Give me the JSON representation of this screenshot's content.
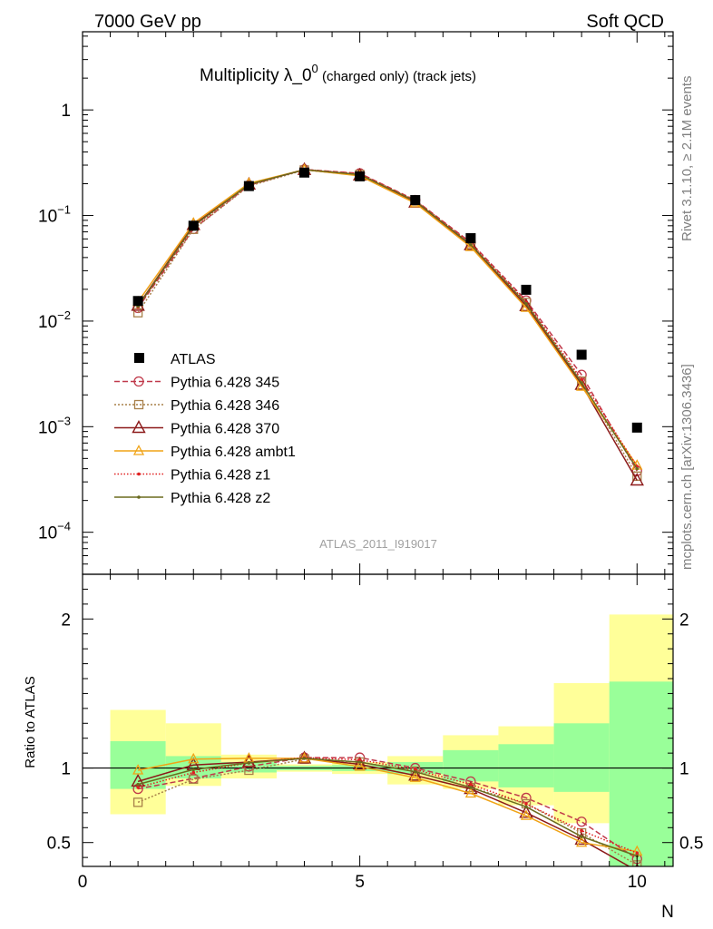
{
  "header": {
    "left": "7000 GeV pp",
    "right": "Soft QCD"
  },
  "side": {
    "top": "Rivet 3.1.10, ≥ 2.1M events",
    "bottom": "mcplots.cern.ch [arXiv:1306.3436]"
  },
  "chart_data": [
    {
      "type": "scatter",
      "title_main": "Multiplicity λ_0",
      "title_sup": "0",
      "title_rest": " (charged only) (track jets)",
      "watermark": "ATLAS_2011_I919017",
      "yscale": "log",
      "xlim": [
        0,
        10.65
      ],
      "ylim": [
        4e-05,
        5.5
      ],
      "yticks": [
        {
          "value": 1,
          "base": "1",
          "exp": ""
        },
        {
          "value": 0.1,
          "base": "10",
          "exp": "−1"
        },
        {
          "value": 0.01,
          "base": "10",
          "exp": "−2"
        },
        {
          "value": 0.001,
          "base": "10",
          "exp": "−3"
        },
        {
          "value": 0.0001,
          "base": "10",
          "exp": "−4"
        }
      ],
      "x": [
        1,
        2,
        3,
        4,
        5,
        6,
        7,
        8,
        9,
        10
      ],
      "data": {
        "name": "ATLAS",
        "values": [
          0.0155,
          0.08,
          0.19,
          0.255,
          0.235,
          0.14,
          0.061,
          0.0198,
          0.0048,
          0.00098
        ]
      },
      "series": [
        {
          "name": "Pythia 6.428 345",
          "color": "#c0394a",
          "dash": "6,3",
          "marker": "circle",
          "values": [
            0.0133,
            0.0745,
            0.193,
            0.273,
            0.251,
            0.14,
            0.0555,
            0.0157,
            0.0031,
            0.00038
          ]
        },
        {
          "name": "Pythia 6.428 346",
          "color": "#a8804a",
          "dash": "2,2",
          "marker": "square",
          "values": [
            0.012,
            0.074,
            0.19,
            0.27,
            0.245,
            0.137,
            0.053,
            0.015,
            0.0027,
            0.00034
          ]
        },
        {
          "name": "Pythia 6.428 370",
          "color": "#8c1a1a",
          "dash": "",
          "marker": "triangle",
          "values": [
            0.014,
            0.0815,
            0.197,
            0.271,
            0.24,
            0.133,
            0.0525,
            0.0139,
            0.0025,
            0.00031
          ]
        },
        {
          "name": "Pythia 6.428 ambt1",
          "color": "#f0a316",
          "dash": "",
          "marker": "triangle-small",
          "values": [
            0.0152,
            0.0845,
            0.202,
            0.272,
            0.237,
            0.131,
            0.0505,
            0.0134,
            0.0024,
            0.00043
          ]
        },
        {
          "name": "Pythia 6.428 z1",
          "color": "#e02020",
          "dash": "1.5,2",
          "marker": "dot",
          "values": [
            0.0135,
            0.0778,
            0.196,
            0.273,
            0.248,
            0.139,
            0.0545,
            0.0151,
            0.0028,
            0.00042
          ]
        },
        {
          "name": "Pythia 6.428 z2",
          "color": "#6b6b1f",
          "dash": "",
          "marker": "dot",
          "values": [
            0.0138,
            0.0795,
            0.197,
            0.272,
            0.244,
            0.137,
            0.053,
            0.0146,
            0.0026,
            0.0004
          ]
        }
      ]
    },
    {
      "type": "line",
      "ylabel": "Ratio to ATLAS",
      "xlabel": "N",
      "xlim": [
        0,
        10.65
      ],
      "ylim": [
        0.34,
        2.3
      ],
      "xticks": [
        {
          "value": 0,
          "label": "0"
        },
        {
          "value": 5,
          "label": "5"
        },
        {
          "value": 10,
          "label": "10"
        }
      ],
      "yticks": [
        {
          "value": 0.5,
          "label": "0.5"
        },
        {
          "value": 1,
          "label": "1"
        },
        {
          "value": 2,
          "label": "2"
        }
      ],
      "bands": [
        {
          "lo": 0.5,
          "hi": 1.5,
          "green": [
            0.86,
            1.18
          ],
          "yellow": [
            0.69,
            1.39
          ]
        },
        {
          "lo": 1.5,
          "hi": 2.5,
          "green": [
            0.93,
            1.08
          ],
          "yellow": [
            0.88,
            1.3
          ]
        },
        {
          "lo": 2.5,
          "hi": 3.5,
          "green": [
            0.97,
            1.04
          ],
          "yellow": [
            0.93,
            1.09
          ]
        },
        {
          "lo": 3.5,
          "hi": 4.5,
          "green": [
            0.985,
            1.015
          ],
          "yellow": [
            0.975,
            1.025
          ]
        },
        {
          "lo": 4.5,
          "hi": 5.5,
          "green": [
            0.98,
            1.02
          ],
          "yellow": [
            0.96,
            1.04
          ]
        },
        {
          "lo": 5.5,
          "hi": 6.5,
          "green": [
            0.96,
            1.04
          ],
          "yellow": [
            0.89,
            1.08
          ]
        },
        {
          "lo": 6.5,
          "hi": 7.5,
          "green": [
            0.91,
            1.12
          ],
          "yellow": [
            0.86,
            1.22
          ]
        },
        {
          "lo": 7.5,
          "hi": 8.5,
          "green": [
            0.87,
            1.16
          ],
          "yellow": [
            0.75,
            1.28
          ]
        },
        {
          "lo": 8.5,
          "hi": 9.5,
          "green": [
            0.84,
            1.3
          ],
          "yellow": [
            0.63,
            1.57
          ]
        },
        {
          "lo": 9.5,
          "hi": 10.65,
          "green": [
            0.34,
            1.58
          ],
          "yellow": [
            0.34,
            2.03
          ]
        }
      ],
      "series": [
        {
          "name": "Pythia 6.428 345",
          "values": [
            0.86,
            0.93,
            1.01,
            1.07,
            1.07,
            1.0,
            0.91,
            0.8,
            0.64,
            0.39
          ]
        },
        {
          "name": "Pythia 6.428 346",
          "values": [
            0.77,
            0.925,
            0.985,
            1.06,
            1.04,
            0.98,
            0.87,
            0.76,
            0.565,
            0.35
          ]
        },
        {
          "name": "Pythia 6.428 370",
          "values": [
            0.91,
            1.02,
            1.04,
            1.065,
            1.025,
            0.95,
            0.86,
            0.7,
            0.52,
            0.31
          ]
        },
        {
          "name": "Pythia 6.428 ambt1",
          "values": [
            0.985,
            1.06,
            1.065,
            1.065,
            1.01,
            0.935,
            0.83,
            0.68,
            0.5,
            0.44
          ]
        },
        {
          "name": "Pythia 6.428 z1",
          "values": [
            0.87,
            0.97,
            1.035,
            1.07,
            1.055,
            0.99,
            0.89,
            0.76,
            0.58,
            0.43
          ]
        },
        {
          "name": "Pythia 6.428 z2",
          "values": [
            0.89,
            0.99,
            1.035,
            1.065,
            1.04,
            0.975,
            0.87,
            0.74,
            0.54,
            0.41
          ]
        }
      ]
    }
  ]
}
